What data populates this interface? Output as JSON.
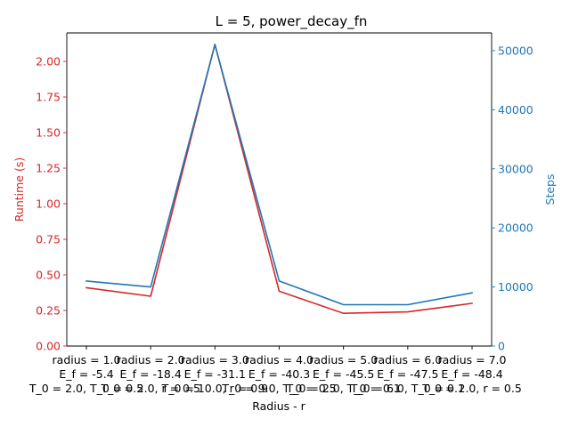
{
  "chart_data": {
    "type": "line",
    "title": "L = 5, power_decay_fn",
    "xlabel": "Radius - r",
    "categories": [
      "radius = 1.0\nE_f = -5.4\nT_0 = 2.0, T_0 = 0.5",
      "radius = 2.0\nE_f = -18.4\nT_0 = 2.0, r = 0.5",
      "radius = 3.0\nE_f = -31.1\nT_0 = 10.0, r = 0.9",
      "radius = 4.0\nE_f = -40.3\nT_0 = 9.0, T_0 = 0.5",
      "radius = 5.0\nE_f = -45.5\nT_0 = 2.0, T_0 = 0.1",
      "radius = 6.0\nE_f = -47.5\nT_0 = 6.0, T_0 = 0.1",
      "radius = 7.0\nE_f = -48.4\nT_0 = 2.0, r = 0.5"
    ],
    "axes": {
      "left": {
        "label": "Runtime (s)",
        "color": "#d62728",
        "ylim": [
          0,
          2.2
        ],
        "ticks": [
          "0.00",
          "0.25",
          "0.50",
          "0.75",
          "1.00",
          "1.25",
          "1.50",
          "1.75",
          "2.00"
        ]
      },
      "right": {
        "label": "Steps",
        "color": "#1f77b4",
        "ylim": [
          0,
          53000
        ],
        "ticks": [
          "0",
          "10000",
          "20000",
          "30000",
          "40000",
          "50000"
        ]
      }
    },
    "series": [
      {
        "axis": "left",
        "color": "#d62728",
        "values": [
          0.41,
          0.35,
          2.12,
          0.385,
          0.23,
          0.24,
          0.3
        ]
      },
      {
        "axis": "right",
        "color": "#1f77b4",
        "values": [
          11000,
          10000,
          51000,
          11000,
          7000,
          7000,
          9000
        ]
      }
    ],
    "grid": false,
    "legend": "none"
  }
}
